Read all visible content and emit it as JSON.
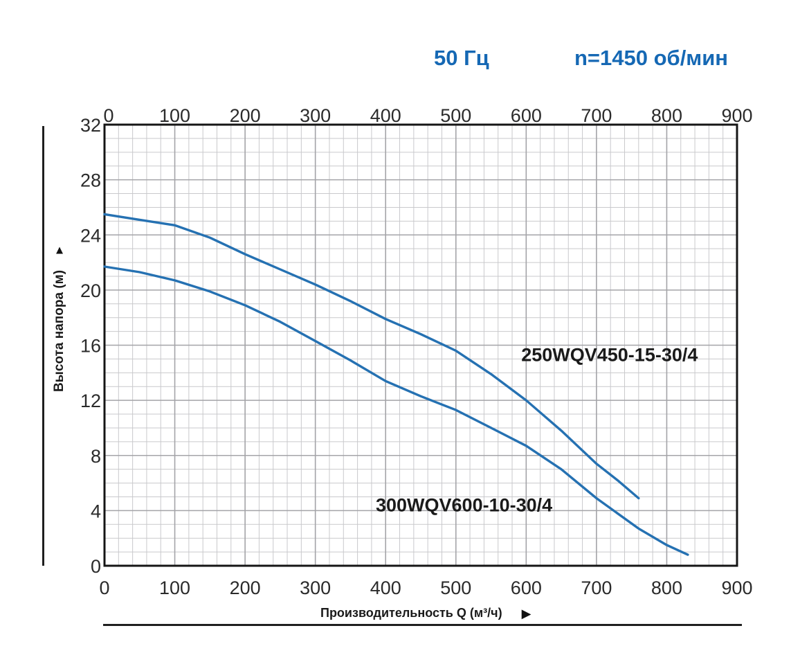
{
  "header": {
    "frequency_label": "50 Гц",
    "speed_label": "n=1450 об/мин"
  },
  "colors": {
    "header_blue": "#1568b4",
    "curve_blue": "#2571b2",
    "grid_minor": "#c9c9cc",
    "grid_major": "#a4a4a8",
    "axis_border": "#151515",
    "tick_text": "#2b2b2b",
    "label_text": "#1a1a1a"
  },
  "chart_data": {
    "type": "line",
    "title": "",
    "xlabel": "Производительность Q (м³/ч)",
    "ylabel": "Высота напора (м)",
    "xlim": [
      0,
      900
    ],
    "ylim": [
      0,
      32
    ],
    "x_major_ticks": [
      0,
      100,
      200,
      300,
      400,
      500,
      600,
      700,
      800,
      900
    ],
    "y_major_ticks": [
      0,
      4,
      8,
      12,
      16,
      20,
      24,
      28,
      32
    ],
    "x_minor_step": 20,
    "y_minor_step": 1,
    "grid": "major+minor",
    "x_tick_labels_position": "top and bottom",
    "legend": "inline curve labels",
    "series": [
      {
        "name": "250WQV450-15-30/4",
        "label_at": [
          593,
          15.3
        ],
        "points": [
          [
            0,
            25.5
          ],
          [
            50,
            25.1
          ],
          [
            100,
            24.7
          ],
          [
            150,
            23.8
          ],
          [
            200,
            22.6
          ],
          [
            250,
            21.5
          ],
          [
            300,
            20.4
          ],
          [
            350,
            19.2
          ],
          [
            400,
            17.9
          ],
          [
            450,
            16.8
          ],
          [
            500,
            15.6
          ],
          [
            550,
            13.9
          ],
          [
            600,
            12.0
          ],
          [
            650,
            9.8
          ],
          [
            700,
            7.4
          ],
          [
            730,
            6.2
          ],
          [
            760,
            4.9
          ]
        ]
      },
      {
        "name": "300WQV600-10-30/4",
        "label_at": [
          386,
          4.4
        ],
        "points": [
          [
            0,
            21.7
          ],
          [
            50,
            21.3
          ],
          [
            100,
            20.7
          ],
          [
            150,
            19.9
          ],
          [
            200,
            18.9
          ],
          [
            250,
            17.7
          ],
          [
            300,
            16.3
          ],
          [
            350,
            14.9
          ],
          [
            400,
            13.4
          ],
          [
            450,
            12.3
          ],
          [
            500,
            11.3
          ],
          [
            550,
            10.0
          ],
          [
            600,
            8.7
          ],
          [
            650,
            7.0
          ],
          [
            700,
            4.9
          ],
          [
            760,
            2.7
          ],
          [
            800,
            1.5
          ],
          [
            830,
            0.8
          ]
        ]
      }
    ]
  }
}
